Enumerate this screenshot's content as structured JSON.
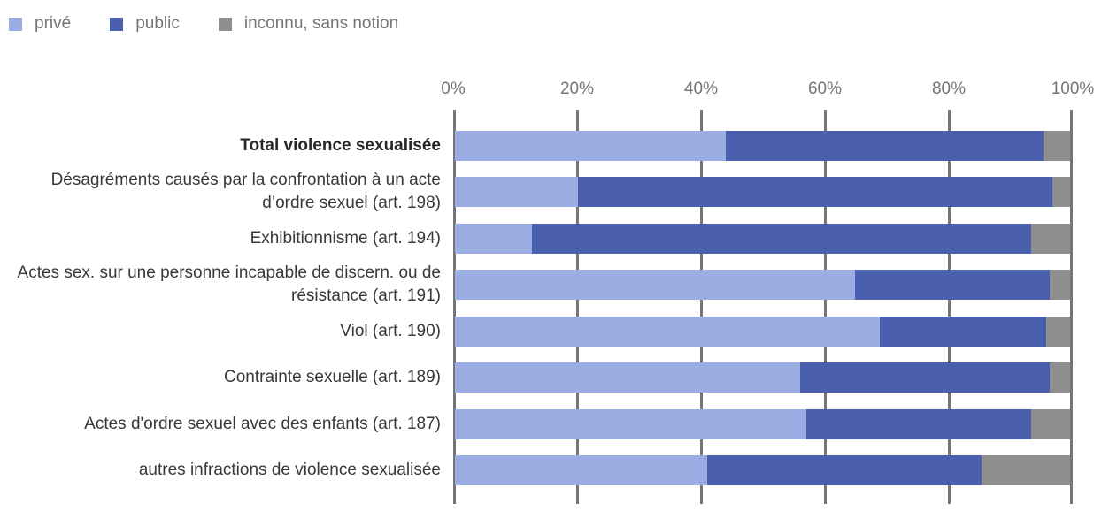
{
  "legend": {
    "items": [
      {
        "label": "privé",
        "color": "#9CADE3"
      },
      {
        "label": "public",
        "color": "#4A60AF"
      },
      {
        "label": "inconnu, sans notion",
        "color": "#8E8E8E"
      }
    ]
  },
  "colors": {
    "prive": "#9CADE3",
    "public": "#4A60AF",
    "inconnu": "#8E8E8E",
    "gridline": "#757575",
    "axis_text": "#757575",
    "category_text": "#383838"
  },
  "chart_data": {
    "type": "bar",
    "subtype": "horizontal_stacked_100pct",
    "title": "",
    "xlabel": "",
    "ylabel": "",
    "unit": "%",
    "x_axis": {
      "range": [
        0,
        100
      ],
      "ticks": [
        0,
        20,
        40,
        60,
        80,
        100
      ],
      "tick_labels": [
        "0%",
        "20%",
        "40%",
        "60%",
        "80%",
        "100%"
      ]
    },
    "grid": true,
    "legend_position": "top-left",
    "bold_category_index": 0,
    "categories": [
      "Total violence sexualisée",
      "Désagréments causés par la confrontation à un acte d’ordre sexuel (art. 198)",
      "Exhibitionnisme (art. 194)",
      "Actes sex. sur une personne incapable de discern. ou de résistance (art. 191)",
      "Viol (art. 190)",
      "Contrainte sexuelle (art. 189)",
      "Actes d'ordre sexuel avec des enfants (art. 187)",
      "autres infractions de violence sexualisée"
    ],
    "series": [
      {
        "name": "privé",
        "color": "#9CADE3",
        "values": [
          44,
          20,
          12.5,
          65,
          69,
          56,
          57,
          41
        ]
      },
      {
        "name": "public",
        "color": "#4A60AF",
        "values": [
          51.5,
          77,
          81,
          31.5,
          27,
          40.5,
          36.5,
          44.5
        ]
      },
      {
        "name": "inconnu, sans notion",
        "color": "#8E8E8E",
        "values": [
          4.5,
          3,
          6.5,
          3.5,
          4,
          3.5,
          6.5,
          14.5
        ]
      }
    ]
  }
}
